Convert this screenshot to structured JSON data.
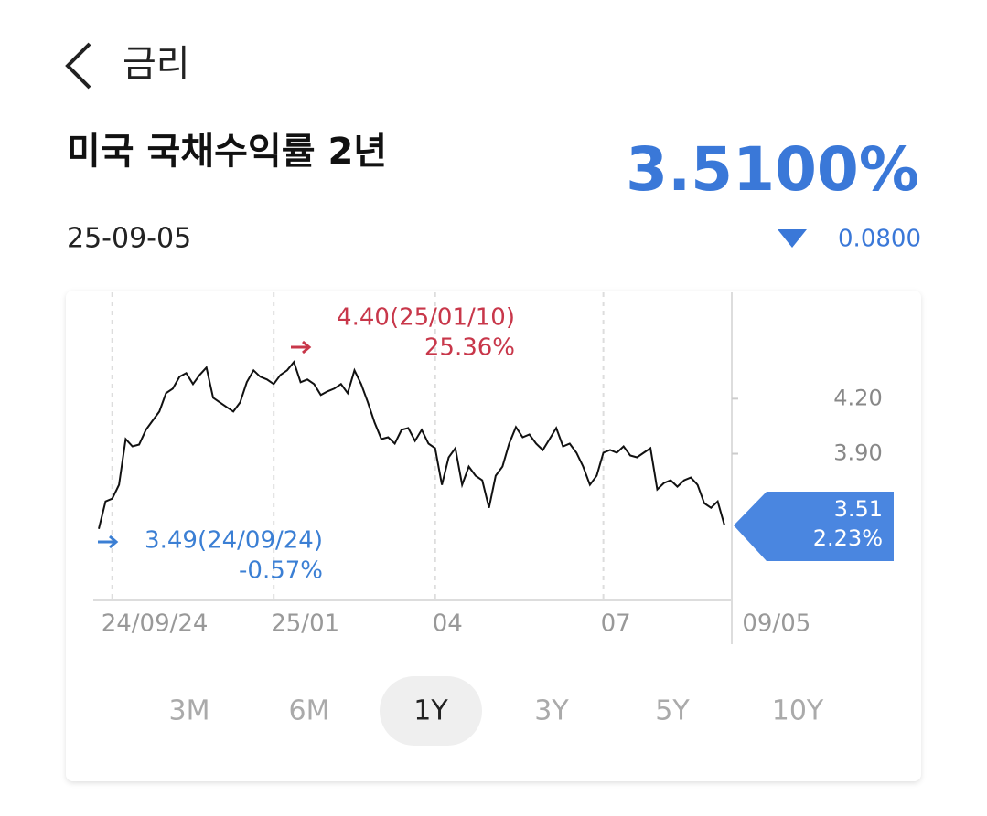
{
  "header": {
    "title": "금리"
  },
  "instrument": {
    "name": "미국 국채수익률 2년",
    "price": "3.5100%",
    "date": "25-09-05",
    "change": "0.0800"
  },
  "chart_data": {
    "type": "line",
    "color": "#111111",
    "values": [
      3.49,
      3.64,
      3.655,
      3.73,
      3.98,
      3.94,
      3.95,
      4.03,
      4.08,
      4.13,
      4.23,
      4.255,
      4.32,
      4.34,
      4.28,
      4.33,
      4.37,
      4.205,
      4.18,
      4.155,
      4.13,
      4.18,
      4.29,
      4.355,
      4.32,
      4.305,
      4.28,
      4.33,
      4.355,
      4.4,
      4.29,
      4.305,
      4.28,
      4.22,
      4.24,
      4.255,
      4.28,
      4.23,
      4.355,
      4.28,
      4.18,
      4.07,
      3.98,
      3.99,
      3.955,
      4.03,
      4.04,
      3.97,
      4.03,
      3.955,
      3.93,
      3.73,
      3.88,
      3.93,
      3.73,
      3.83,
      3.78,
      3.755,
      3.605,
      3.78,
      3.83,
      3.955,
      4.045,
      3.99,
      4.005,
      3.955,
      3.92,
      3.98,
      4.04,
      3.94,
      3.955,
      3.905,
      3.83,
      3.73,
      3.78,
      3.905,
      3.92,
      3.905,
      3.94,
      3.89,
      3.88,
      3.905,
      3.93,
      3.705,
      3.74,
      3.755,
      3.72,
      3.755,
      3.77,
      3.73,
      3.63,
      3.605,
      3.64,
      3.51
    ],
    "xlim": [
      0,
      93
    ],
    "ylim": [
      3.1,
      4.78
    ],
    "xticks": [
      {
        "value": 2,
        "label": "24/09/24"
      },
      {
        "value": 26,
        "label": "25/01"
      },
      {
        "value": 50,
        "label": "04"
      },
      {
        "value": 75,
        "label": "07"
      },
      {
        "value": 94,
        "label": "09/05"
      }
    ],
    "yticks": [
      {
        "value": 4.2,
        "label": "4.20"
      },
      {
        "value": 3.9,
        "label": "3.90"
      }
    ],
    "high": {
      "label": "4.40(25/01/10)",
      "change": "25.36%",
      "color": "#c8374a"
    },
    "low": {
      "label": "3.49(24/09/24)",
      "change": "-0.57%",
      "color": "#3b7fd4"
    },
    "last": {
      "label": "3.51",
      "change": "2.23%",
      "color": "#4a86e0"
    }
  },
  "range_buttons": {
    "options": [
      "3M",
      "6M",
      "1Y",
      "3Y",
      "5Y",
      "10Y"
    ],
    "selected": "1Y"
  }
}
